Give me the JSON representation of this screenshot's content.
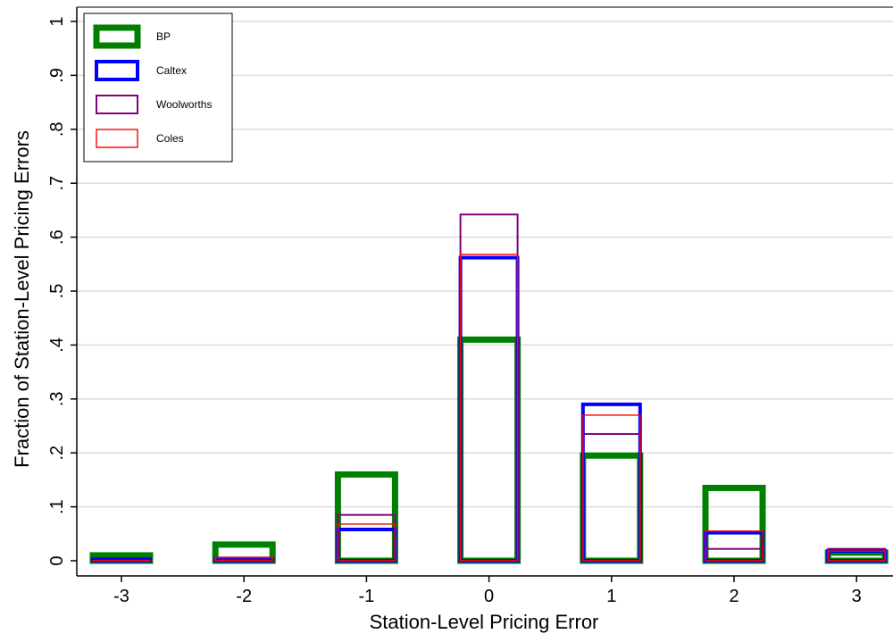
{
  "chart_data": {
    "type": "bar",
    "title": "",
    "xlabel": "Station-Level Pricing Error",
    "ylabel": "Fraction of Station-Level Pricing Errors",
    "categories": [
      "-3",
      "-2",
      "-1",
      "0",
      "1",
      "2",
      "3"
    ],
    "x": [
      -3,
      -2,
      -1,
      0,
      1,
      2,
      3
    ],
    "ylim": [
      0,
      1
    ],
    "yticks": [
      0,
      0.1,
      0.2,
      0.3,
      0.4,
      0.5,
      0.6,
      0.7,
      0.8,
      0.9,
      1
    ],
    "ytick_labels": [
      "0",
      ".1",
      ".2",
      ".3",
      ".4",
      ".5",
      ".6",
      ".7",
      ".8",
      ".9",
      "1"
    ],
    "grid": true,
    "legend_position": "top-left",
    "bar_style": "hollow outlined overlapping bars",
    "series": [
      {
        "name": "BP",
        "color": "#008000",
        "values": [
          0.01,
          0.03,
          0.16,
          0.41,
          0.195,
          0.135,
          0.015
        ]
      },
      {
        "name": "Caltex",
        "color": "#0000ff",
        "values": [
          0.003,
          0.003,
          0.058,
          0.562,
          0.29,
          0.052,
          0.018
        ]
      },
      {
        "name": "Woolworths",
        "color": "#800080",
        "values": [
          0.0,
          0.006,
          0.085,
          0.642,
          0.235,
          0.022,
          0.022
        ]
      },
      {
        "name": "Coles",
        "color": "#ff0000",
        "values": [
          0.0,
          0.006,
          0.068,
          0.568,
          0.27,
          0.055,
          0.018
        ]
      }
    ]
  }
}
